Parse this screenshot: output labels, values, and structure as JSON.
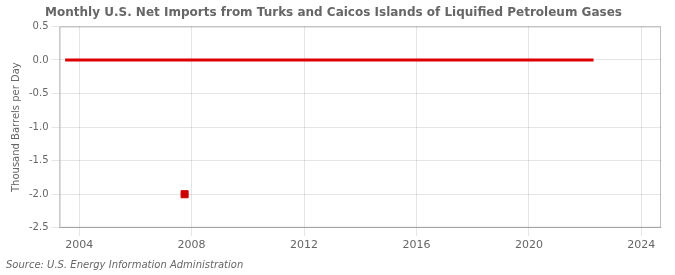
{
  "chart_data": {
    "type": "line",
    "title": "Monthly U.S. Net Imports from Turks and Caicos Islands of Liquified Petroleum Gases",
    "ylabel": "Thousand Barrels per Day",
    "source": "Source: U.S. Energy Information Administration",
    "series": [
      {
        "type": "line",
        "color": "#dd0000",
        "x": [
          2003.5,
          2022.3
        ],
        "values": [
          0.0,
          0.0
        ]
      },
      {
        "type": "scatter",
        "color": "#cc0000",
        "marker": "square",
        "x": [
          2007.75
        ],
        "values": [
          -2.0
        ]
      }
    ],
    "xlim": [
      2003.3,
      2024.7
    ],
    "xticks": [
      2004,
      2008,
      2012,
      2016,
      2020,
      2024
    ],
    "ylim": [
      -2.5,
      0.5
    ],
    "yticks": [
      0.5,
      {
        "value": 0.0,
        "label": "0.0"
      },
      -0.5,
      {
        "value": -1.0,
        "label": "-1.0"
      },
      -1.5,
      {
        "value": -2.0,
        "label": "-2.0"
      },
      -2.5
    ],
    "grid": true
  }
}
